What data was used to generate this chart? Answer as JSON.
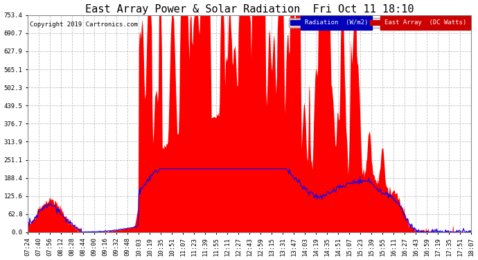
{
  "title": "East Array Power & Solar Radiation  Fri Oct 11 18:10",
  "copyright": "Copyright 2019 Cartronics.com",
  "legend_radiation": "Radiation  (W/m2)",
  "legend_east": "East Array  (DC Watts)",
  "radiation_color": "#0000ff",
  "east_color": "#ff0000",
  "east_fill_color": "#ff0000",
  "background_color": "#ffffff",
  "plot_bg_color": "#ffffff",
  "grid_color": "#c0c0c0",
  "yticks": [
    0.0,
    62.8,
    125.6,
    188.4,
    251.1,
    313.9,
    376.7,
    439.5,
    502.3,
    565.1,
    627.9,
    690.7,
    753.4
  ],
  "ymax": 753.4,
  "ymin": 0.0,
  "title_fontsize": 11,
  "tick_fontsize": 6.5,
  "copyright_fontsize": 6.5,
  "legend_fontsize": 6.5,
  "xtick_labels": [
    "07:24",
    "07:40",
    "07:56",
    "08:12",
    "08:28",
    "08:44",
    "09:00",
    "09:16",
    "09:32",
    "09:48",
    "10:03",
    "10:19",
    "10:35",
    "10:51",
    "11:07",
    "11:23",
    "11:39",
    "11:55",
    "12:11",
    "12:27",
    "12:43",
    "12:59",
    "13:15",
    "13:31",
    "13:47",
    "14:03",
    "14:19",
    "14:35",
    "14:51",
    "15:07",
    "15:23",
    "15:39",
    "15:55",
    "16:11",
    "16:27",
    "16:43",
    "16:59",
    "17:19",
    "17:35",
    "17:51",
    "18:07"
  ]
}
